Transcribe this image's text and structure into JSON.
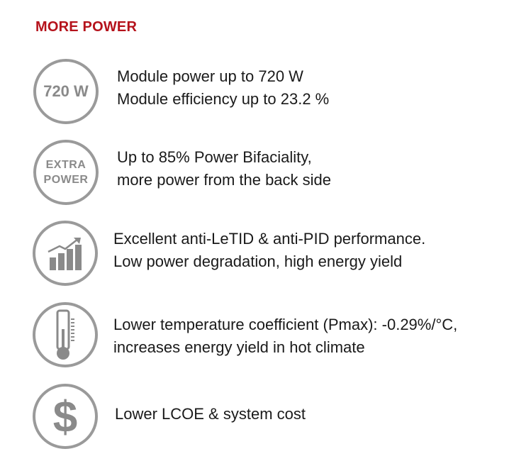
{
  "heading": "MORE POWER",
  "colors": {
    "accent": "#b5121b",
    "icon_gray": "#9a9a9a",
    "text": "#1a1a1a"
  },
  "features": [
    {
      "icon": "720w-badge-icon",
      "icon_text": "720 W",
      "lines": [
        "Module power up to 720 W",
        "Module efficiency up to 23.2 %"
      ]
    },
    {
      "icon": "extra-power-badge-icon",
      "icon_text_line1": "EXTRA",
      "icon_text_line2": "POWER",
      "lines": [
        "Up to 85% Power Bifaciality,",
        "more power from the back side"
      ]
    },
    {
      "icon": "growth-chart-icon",
      "lines": [
        "Excellent anti-LeTID & anti-PID performance.",
        "Low power degradation, high energy yield"
      ]
    },
    {
      "icon": "thermometer-icon",
      "lines": [
        "Lower temperature coefficient (Pmax): -0.29%/°C,",
        "increases energy yield in hot climate"
      ]
    },
    {
      "icon": "dollar-icon",
      "lines": [
        "Lower LCOE & system cost"
      ]
    }
  ]
}
